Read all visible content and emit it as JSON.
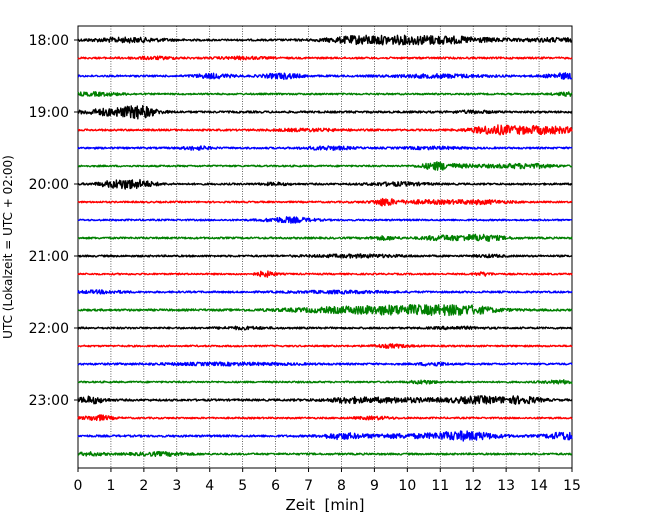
{
  "chart_data": {
    "type": "line",
    "title": "",
    "xlabel": "Zeit  [min]",
    "ylabel": "UTC (Lokalzeit = UTC + 02:00)",
    "xlim": [
      0,
      15
    ],
    "x_ticks": [
      0,
      1,
      2,
      3,
      4,
      5,
      6,
      7,
      8,
      9,
      10,
      11,
      12,
      13,
      14,
      15
    ],
    "y_ticks": [
      "18:00",
      "19:00",
      "20:00",
      "21:00",
      "22:00",
      "23:00"
    ],
    "grid": "vertical dotted at each minute",
    "trace_interval_minutes": 15,
    "colors_cycle": [
      "#000000",
      "#ff0000",
      "#0000ff",
      "#008000"
    ],
    "traces": [
      {
        "start": "18:00",
        "color": "#000000",
        "base_amp": 0.9,
        "bursts": [
          [
            1.5,
            0.8,
            2.0
          ],
          [
            10.4,
            1.5,
            4.0
          ],
          [
            8.5,
            0.6,
            2.0
          ],
          [
            14.5,
            0.6,
            1.5
          ]
        ]
      },
      {
        "start": "18:15",
        "color": "#ff0000",
        "base_amp": 0.9,
        "bursts": [
          [
            2.3,
            0.5,
            1.0
          ],
          [
            5.0,
            0.5,
            1.0
          ]
        ]
      },
      {
        "start": "18:30",
        "color": "#0000ff",
        "base_amp": 0.9,
        "bursts": [
          [
            4.1,
            0.4,
            2.0
          ],
          [
            6.2,
            0.4,
            2.5
          ],
          [
            11.0,
            1.0,
            1.5
          ],
          [
            14.8,
            0.4,
            2.5
          ]
        ]
      },
      {
        "start": "18:45",
        "color": "#008000",
        "base_amp": 0.8,
        "bursts": [
          [
            0.5,
            0.6,
            1.5
          ],
          [
            14.9,
            0.3,
            1.5
          ]
        ]
      },
      {
        "start": "19:00",
        "color": "#000000",
        "base_amp": 1.0,
        "bursts": [
          [
            1.2,
            0.7,
            3.5
          ],
          [
            1.9,
            0.3,
            4.0
          ],
          [
            12.0,
            0.4,
            1.0
          ]
        ]
      },
      {
        "start": "19:15",
        "color": "#ff0000",
        "base_amp": 0.9,
        "bursts": [
          [
            12.6,
            0.5,
            3.5
          ],
          [
            14.1,
            0.8,
            3.5
          ],
          [
            7.0,
            0.8,
            1.0
          ]
        ]
      },
      {
        "start": "19:30",
        "color": "#0000ff",
        "base_amp": 0.9,
        "bursts": [
          [
            3.6,
            0.3,
            1.5
          ],
          [
            7.6,
            0.5,
            1.5
          ],
          [
            10.8,
            0.6,
            1.0
          ]
        ]
      },
      {
        "start": "19:45",
        "color": "#008000",
        "base_amp": 0.8,
        "bursts": [
          [
            10.9,
            0.3,
            3.0
          ],
          [
            13.6,
            0.6,
            2.0
          ],
          [
            11.7,
            0.8,
            1.2
          ]
        ]
      },
      {
        "start": "20:00",
        "color": "#000000",
        "base_amp": 0.9,
        "bursts": [
          [
            1.2,
            0.4,
            3.0
          ],
          [
            1.8,
            0.4,
            3.0
          ],
          [
            9.7,
            0.6,
            1.5
          ],
          [
            6.0,
            0.3,
            1.0
          ]
        ]
      },
      {
        "start": "20:15",
        "color": "#ff0000",
        "base_amp": 0.8,
        "bursts": [
          [
            9.3,
            0.2,
            3.0
          ],
          [
            10.5,
            1.0,
            1.5
          ],
          [
            12.3,
            0.6,
            1.5
          ]
        ]
      },
      {
        "start": "20:30",
        "color": "#0000ff",
        "base_amp": 0.8,
        "bursts": [
          [
            6.4,
            0.5,
            2.5
          ]
        ]
      },
      {
        "start": "20:45",
        "color": "#008000",
        "base_amp": 0.9,
        "bursts": [
          [
            11.0,
            0.4,
            2.0
          ],
          [
            12.2,
            0.5,
            3.0
          ],
          [
            9.3,
            0.3,
            1.5
          ]
        ]
      },
      {
        "start": "21:00",
        "color": "#000000",
        "base_amp": 0.9,
        "bursts": [
          [
            8.5,
            1.0,
            1.2
          ],
          [
            12.5,
            0.3,
            1.0
          ]
        ]
      },
      {
        "start": "21:15",
        "color": "#ff0000",
        "base_amp": 0.8,
        "bursts": [
          [
            5.7,
            0.2,
            2.5
          ],
          [
            12.3,
            0.2,
            1.5
          ]
        ]
      },
      {
        "start": "21:30",
        "color": "#0000ff",
        "base_amp": 0.9,
        "bursts": [
          [
            0.7,
            0.5,
            1.2
          ],
          [
            8.0,
            1.0,
            1.0
          ]
        ]
      },
      {
        "start": "21:45",
        "color": "#008000",
        "base_amp": 1.0,
        "bursts": [
          [
            8.5,
            1.5,
            2.5
          ],
          [
            10.5,
            1.2,
            3.0
          ],
          [
            11.8,
            0.6,
            2.5
          ]
        ]
      },
      {
        "start": "22:00",
        "color": "#000000",
        "base_amp": 0.9,
        "bursts": [
          [
            5.0,
            0.5,
            1.0
          ],
          [
            11.5,
            0.5,
            1.0
          ]
        ]
      },
      {
        "start": "22:15",
        "color": "#ff0000",
        "base_amp": 0.8,
        "bursts": [
          [
            9.5,
            0.4,
            1.5
          ]
        ]
      },
      {
        "start": "22:30",
        "color": "#0000ff",
        "base_amp": 0.9,
        "bursts": [
          [
            10.8,
            0.3,
            1.5
          ],
          [
            4.5,
            1.5,
            1.0
          ]
        ]
      },
      {
        "start": "22:45",
        "color": "#008000",
        "base_amp": 0.8,
        "bursts": [
          [
            10.5,
            0.3,
            1.5
          ],
          [
            14.7,
            0.4,
            1.5
          ]
        ]
      },
      {
        "start": "23:00",
        "color": "#000000",
        "base_amp": 1.0,
        "bursts": [
          [
            0.4,
            0.3,
            3.0
          ],
          [
            9.5,
            1.2,
            2.0
          ],
          [
            12.2,
            0.6,
            3.0
          ],
          [
            13.5,
            0.4,
            3.0
          ],
          [
            8.2,
            0.3,
            1.5
          ]
        ]
      },
      {
        "start": "23:15",
        "color": "#ff0000",
        "base_amp": 0.8,
        "bursts": [
          [
            0.6,
            0.3,
            2.5
          ],
          [
            9.0,
            0.4,
            1.2
          ]
        ]
      },
      {
        "start": "23:30",
        "color": "#0000ff",
        "base_amp": 1.0,
        "bursts": [
          [
            8.0,
            0.4,
            2.5
          ],
          [
            11.7,
            0.7,
            4.0
          ],
          [
            14.8,
            0.4,
            3.5
          ],
          [
            9.7,
            0.8,
            1.5
          ]
        ]
      },
      {
        "start": "23:45",
        "color": "#008000",
        "base_amp": 0.9,
        "bursts": [
          [
            2.5,
            0.6,
            1.5
          ],
          [
            0.4,
            0.3,
            1.3
          ]
        ]
      }
    ]
  }
}
